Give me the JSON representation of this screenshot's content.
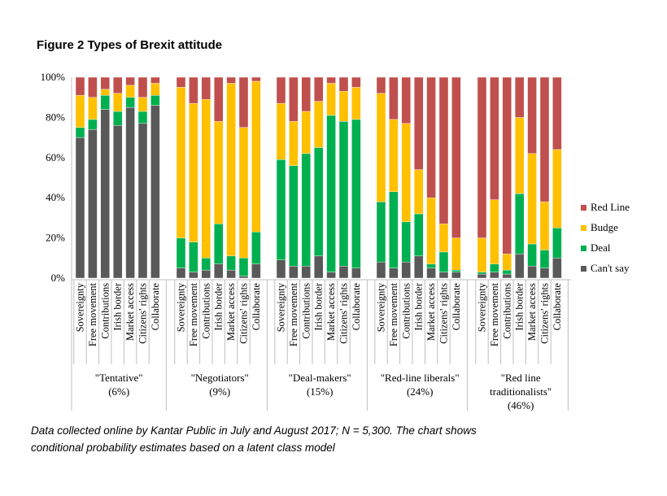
{
  "chart_data": {
    "type": "bar",
    "stacked": true,
    "title": "Figure 2 Types of Brexit attitude",
    "ylim": [
      0,
      100
    ],
    "yticks": [
      "0%",
      "20%",
      "40%",
      "60%",
      "80%",
      "100%"
    ],
    "categories": [
      "Sovereignty",
      "Free movement",
      "Contributions",
      "Irish border",
      "Market access",
      "Citizens' rights",
      "Collaborate"
    ],
    "groups": [
      {
        "label1": "\"Tentative\"",
        "label2": "(6%)"
      },
      {
        "label1": "\"Negotiators\"",
        "label2": "(9%)"
      },
      {
        "label1": "\"Deal-makers\"",
        "label2": "(15%)"
      },
      {
        "label1": "\"Red-line liberals\"",
        "label2": "(24%)"
      },
      {
        "label1": "\"Red line",
        "label2": "traditionalists\"",
        "label3": "(46%)"
      }
    ],
    "series_order_bottom_to_top": [
      "Can't say",
      "Deal",
      "Budge",
      "Red Line"
    ],
    "legend": [
      "Red Line",
      "Budge",
      "Deal",
      "Can't say"
    ],
    "legend_placement": "right",
    "colors": {
      "Red Line": "#c0504d",
      "Budge": "#ffc000",
      "Deal": "#00b050",
      "Can't say": "#595959"
    },
    "values": [
      [
        [
          70,
          5,
          16,
          9
        ],
        [
          74,
          5,
          11,
          10
        ],
        [
          84,
          7,
          3,
          6
        ],
        [
          76,
          7,
          9,
          8
        ],
        [
          85,
          5,
          6,
          4
        ],
        [
          77,
          6,
          7,
          10
        ],
        [
          86,
          5,
          6,
          3
        ]
      ],
      [
        [
          5,
          15,
          75,
          5
        ],
        [
          3,
          15,
          69,
          13
        ],
        [
          4,
          6,
          79,
          11
        ],
        [
          7,
          20,
          51,
          22
        ],
        [
          4,
          7,
          86,
          3
        ],
        [
          1,
          9,
          65,
          25
        ],
        [
          7,
          16,
          75,
          2
        ]
      ],
      [
        [
          9,
          50,
          28,
          13
        ],
        [
          6,
          50,
          22,
          22
        ],
        [
          6,
          56,
          21,
          17
        ],
        [
          11,
          54,
          23,
          12
        ],
        [
          3,
          78,
          16,
          3
        ],
        [
          6,
          72,
          15,
          7
        ],
        [
          5,
          74,
          16,
          5
        ]
      ],
      [
        [
          8,
          30,
          54,
          8
        ],
        [
          5,
          38,
          36,
          21
        ],
        [
          8,
          20,
          49,
          23
        ],
        [
          11,
          21,
          22,
          46
        ],
        [
          5,
          2,
          33,
          60
        ],
        [
          3,
          10,
          14,
          73
        ],
        [
          3,
          1,
          16,
          80
        ]
      ],
      [
        [
          2,
          1,
          17,
          80
        ],
        [
          3,
          4,
          32,
          61
        ],
        [
          2,
          2,
          8,
          88
        ],
        [
          12,
          30,
          38,
          20
        ],
        [
          6,
          11,
          45,
          38
        ],
        [
          5,
          9,
          24,
          62
        ],
        [
          10,
          15,
          39,
          36
        ]
      ]
    ]
  },
  "footnote": {
    "line1": "Data collected online by Kantar Public in July and August 2017; N = 5,300. The chart shows",
    "line2": "conditional probability estimates based on a latent class model"
  }
}
